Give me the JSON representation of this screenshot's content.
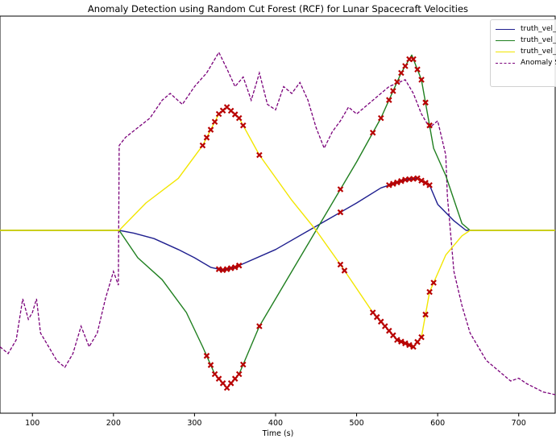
{
  "chart_data": {
    "type": "line",
    "title": "Anomaly Detection using Random Cut Forest (RCF) for Lunar Spacecraft Velocities",
    "xlabel": "Time (s)",
    "ylabel": "",
    "x_ticks": [
      100,
      200,
      300,
      400,
      500,
      600,
      700
    ],
    "xlim": [
      60,
      745
    ],
    "grid": false,
    "legend_position": "top-right",
    "colors": {
      "vel_x": "#1f1f8f",
      "vel_y": "#1f7f1f",
      "vel_z": "#f2e600",
      "anomaly_score": "#7a007a",
      "anomaly_marker": "#b80000"
    },
    "legend": [
      {
        "label": "truth_vel_CO",
        "color": "#1f1f8f",
        "style": "solid"
      },
      {
        "label": "truth_vel_CO",
        "color": "#1f7f1f",
        "style": "solid"
      },
      {
        "label": "truth_vel_CO",
        "color": "#f2e600",
        "style": "solid"
      },
      {
        "label": "Anomaly Sco",
        "color": "#7a007a",
        "style": "dashed"
      }
    ],
    "series": [
      {
        "key": "vel_x",
        "x": [
          60,
          207,
          225,
          250,
          280,
          300,
          320,
          335,
          350,
          400,
          450,
          500,
          530,
          560,
          575,
          590,
          600,
          620,
          635,
          745
        ],
        "y": [
          0,
          0,
          -0.02,
          -0.06,
          -0.14,
          -0.2,
          -0.27,
          -0.29,
          -0.27,
          -0.14,
          0.03,
          0.2,
          0.31,
          0.37,
          0.38,
          0.33,
          0.19,
          0.07,
          0,
          0
        ]
      },
      {
        "key": "vel_y",
        "x": [
          60,
          207,
          230,
          260,
          290,
          310,
          325,
          340,
          355,
          380,
          420,
          450,
          500,
          530,
          555,
          568,
          580,
          595,
          610,
          630,
          640,
          745
        ],
        "y": [
          0,
          0,
          -0.2,
          -0.36,
          -0.6,
          -0.85,
          -1.05,
          -1.15,
          -1.05,
          -0.7,
          -0.3,
          0,
          0.5,
          0.82,
          1.15,
          1.28,
          1.1,
          0.6,
          0.4,
          0.05,
          0,
          0
        ]
      },
      {
        "key": "vel_z",
        "x": [
          60,
          207,
          240,
          280,
          310,
          330,
          340,
          355,
          380,
          420,
          450,
          480,
          520,
          550,
          570,
          580,
          590,
          610,
          630,
          640,
          745
        ],
        "y": [
          0,
          0,
          0.2,
          0.38,
          0.62,
          0.85,
          0.9,
          0.82,
          0.55,
          0.22,
          0,
          -0.25,
          -0.6,
          -0.8,
          -0.85,
          -0.78,
          -0.45,
          -0.18,
          -0.04,
          0,
          0
        ]
      }
    ],
    "anomaly_score": {
      "x": [
        60,
        70,
        80,
        88,
        95,
        100,
        105,
        110,
        120,
        130,
        140,
        150,
        160,
        170,
        180,
        190,
        200,
        206,
        207,
        215,
        230,
        245,
        260,
        270,
        285,
        300,
        315,
        330,
        340,
        350,
        360,
        370,
        380,
        390,
        400,
        410,
        420,
        430,
        440,
        450,
        460,
        470,
        480,
        490,
        500,
        520,
        540,
        560,
        570,
        580,
        590,
        600,
        610,
        612,
        620,
        630,
        640,
        650,
        660,
        670,
        680,
        690,
        700,
        710,
        720,
        730,
        745
      ],
      "y": [
        -0.85,
        -0.9,
        -0.8,
        -0.5,
        -0.65,
        -0.6,
        -0.5,
        -0.75,
        -0.85,
        -0.95,
        -1.0,
        -0.9,
        -0.7,
        -0.85,
        -0.75,
        -0.5,
        -0.3,
        -0.4,
        0.62,
        0.68,
        0.75,
        0.82,
        0.95,
        1.0,
        0.92,
        1.05,
        1.15,
        1.3,
        1.18,
        1.05,
        1.12,
        0.95,
        1.15,
        0.92,
        0.88,
        1.05,
        1.0,
        1.08,
        0.95,
        0.75,
        0.6,
        0.72,
        0.8,
        0.9,
        0.85,
        0.95,
        1.05,
        1.1,
        1.0,
        0.85,
        0.75,
        0.8,
        0.55,
        0.25,
        -0.3,
        -0.55,
        -0.75,
        -0.85,
        -0.95,
        -1.0,
        -1.05,
        -1.1,
        -1.08,
        -1.12,
        -1.15,
        -1.18,
        -1.2
      ]
    },
    "anomalies": [
      {
        "series": "vel_z",
        "x": [
          310,
          315,
          320,
          325,
          330,
          335,
          340,
          345,
          350,
          355,
          360,
          380,
          480,
          485,
          520,
          525,
          530,
          535,
          540,
          545,
          550,
          555,
          560,
          565,
          570,
          575,
          580,
          585,
          590,
          595
        ]
      },
      {
        "series": "vel_x",
        "x": [
          330,
          335,
          340,
          345,
          350,
          355,
          480,
          540,
          545,
          550,
          555,
          560,
          565,
          570,
          575,
          580,
          585,
          590
        ]
      },
      {
        "series": "vel_y",
        "x": [
          315,
          320,
          325,
          330,
          335,
          340,
          345,
          350,
          355,
          360,
          380,
          480,
          520,
          530,
          540,
          545,
          550,
          555,
          560,
          565,
          570,
          575,
          580,
          585,
          590
        ]
      }
    ]
  }
}
